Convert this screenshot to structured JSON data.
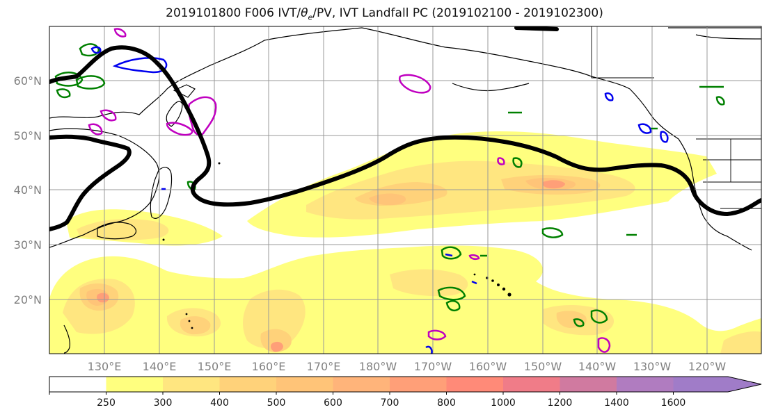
{
  "title": {
    "prefix": "2019101800 F006 IVT/",
    "theta": "θ",
    "theta_sub": "e",
    "suffix": "/PV, IVT Landfall PC (2019102100 - 2019102300)"
  },
  "map": {
    "projection": "Plate Carree (lon/lat)",
    "lat_labels": [
      "20°N",
      "30°N",
      "40°N",
      "50°N",
      "60°N"
    ],
    "lon_labels": [
      "130°E",
      "140°E",
      "150°E",
      "160°E",
      "170°E",
      "180°W",
      "170°W",
      "160°W",
      "150°W",
      "140°W",
      "130°W",
      "120°W"
    ],
    "grid": true,
    "fields": [
      {
        "name": "IVT",
        "style": "filled contours"
      },
      {
        "name": "θe",
        "style": "contours",
        "colors": [
          "#008000"
        ]
      },
      {
        "name": "PV",
        "style": "contours",
        "colors": [
          "#0000ff",
          "#c000c0"
        ]
      },
      {
        "name": "IVT Landfall PC",
        "style": "thick contour",
        "colors": [
          "#000000"
        ]
      }
    ]
  },
  "colorbar": {
    "ticks": [
      "250",
      "300",
      "400",
      "500",
      "600",
      "700",
      "800",
      "1000",
      "1200",
      "1400",
      "1600"
    ],
    "colors": [
      "#ffffff",
      "#ffff7f",
      "#ffe680",
      "#ffd27a",
      "#ffc478",
      "#ffb47a",
      "#ff9f78",
      "#ff8a78",
      "#f07c88",
      "#d07aa0",
      "#b07cc0",
      "#a07cc8"
    ],
    "extend": "max"
  }
}
